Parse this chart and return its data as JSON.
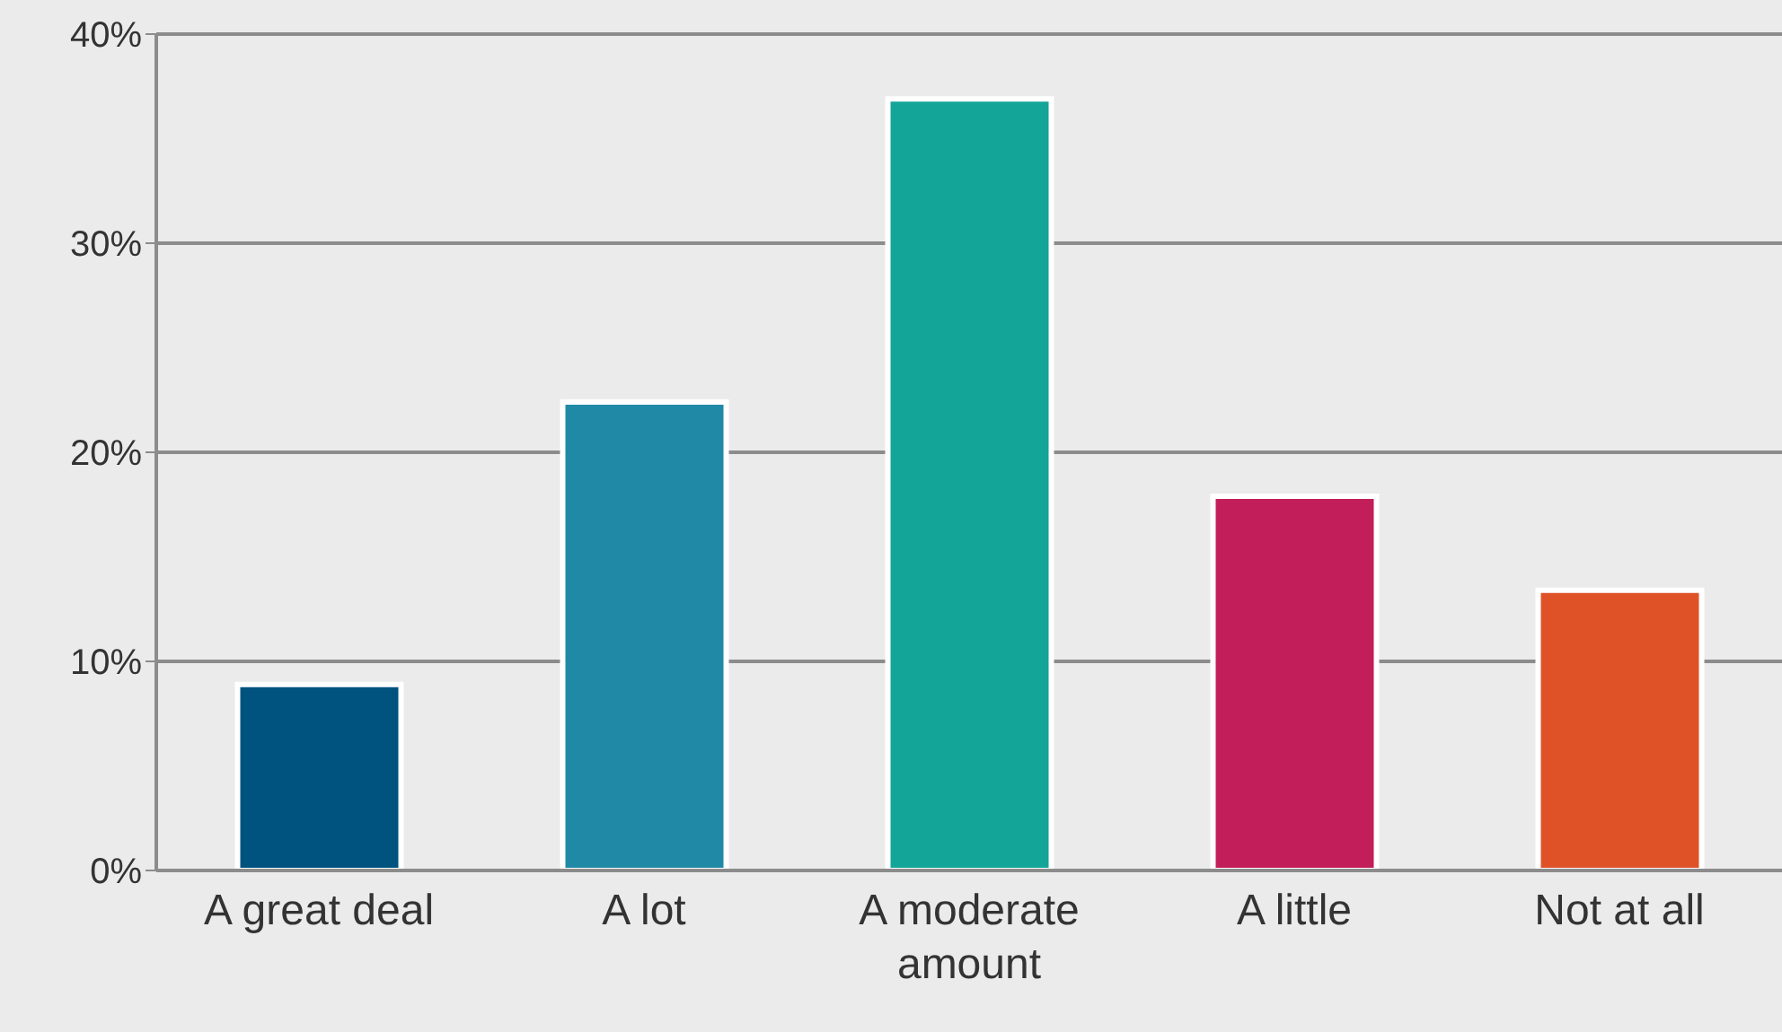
{
  "chart_data": {
    "type": "bar",
    "categories": [
      "A great deal",
      "A lot",
      "A moderate amount",
      "A little",
      "Not at all"
    ],
    "values": [
      8.9,
      22.4,
      36.9,
      17.9,
      13.4
    ],
    "colors": [
      "#00527f",
      "#1f89a6",
      "#13a598",
      "#c21e59",
      "#df5227"
    ],
    "ylim": [
      0,
      40
    ],
    "yticks": [
      {
        "value": 0,
        "label": "0%"
      },
      {
        "value": 10,
        "label": "10%"
      },
      {
        "value": 20,
        "label": "20%"
      },
      {
        "value": 30,
        "label": "30%"
      },
      {
        "value": 40,
        "label": "40%"
      }
    ],
    "grid": "y"
  }
}
